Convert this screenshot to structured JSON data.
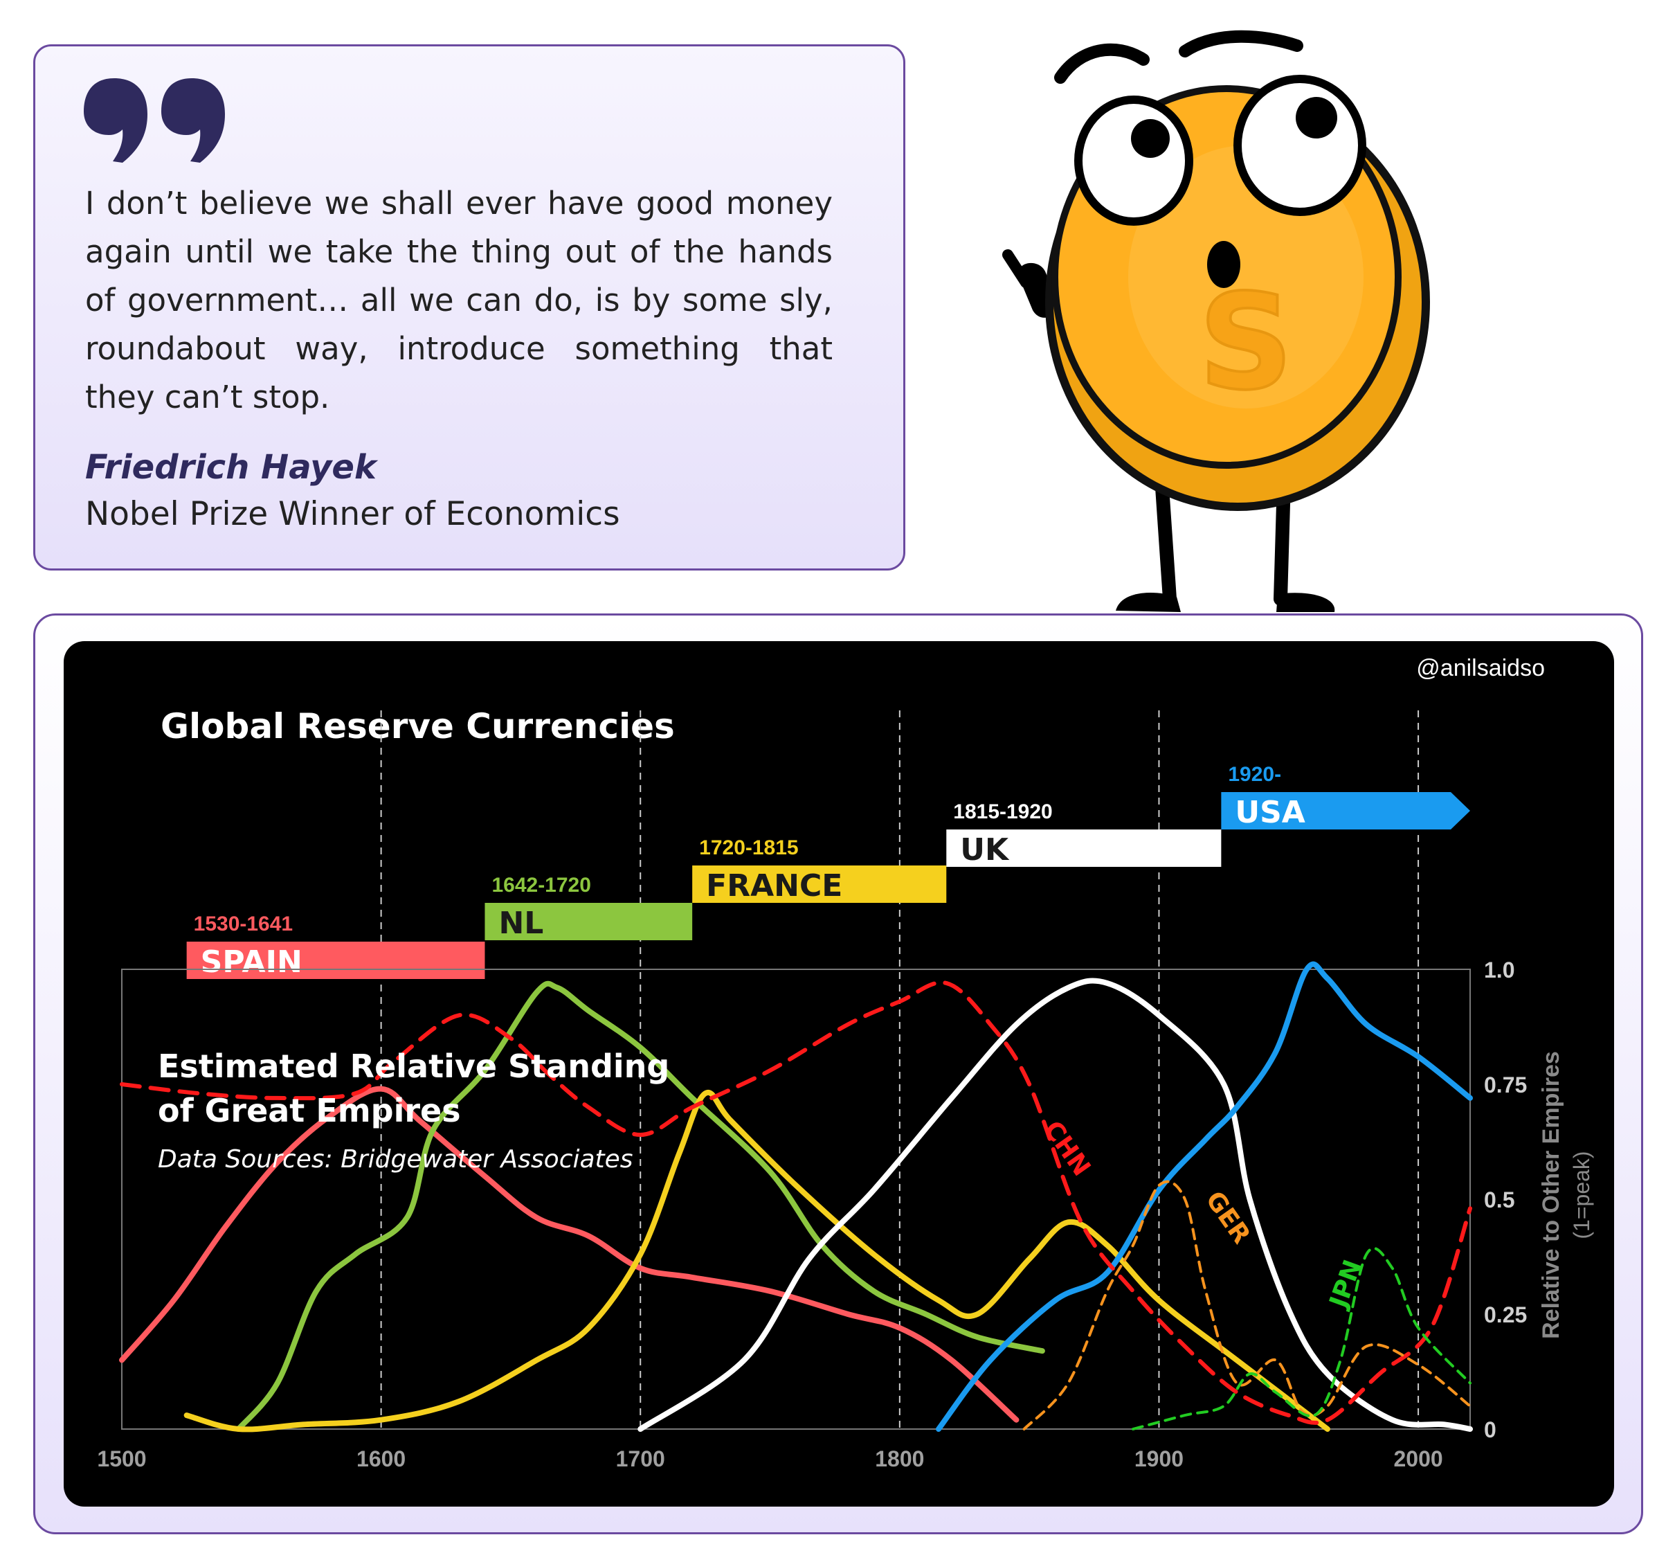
{
  "quote": {
    "text": "I don’t believe we shall ever have good money again until we take the thing out of the hands of government… all we can do, is by some sly, roundabout way, introduce something that they can’t stop.",
    "author": "Friedrich Hayek",
    "role": "Nobel Prize Winner of Economics",
    "icon": "quote-marks-icon"
  },
  "mascot": {
    "icon": "coin-character-icon",
    "emblem": "S"
  },
  "chart_data": {
    "type": "line",
    "title": "Global Reserve Currencies",
    "subtitle": "Estimated Relative Standing of Great Empires",
    "subtitle_lines": [
      "Estimated Relative Standing",
      "of Great Empires"
    ],
    "source": "Data Sources: Bridgewater Associates",
    "watermark": "@anilsaidso",
    "ylabel": "Relative to Other Empires",
    "ylabel_sub": "(1=peak)",
    "xlim": [
      1500,
      2020
    ],
    "ylim": [
      0,
      1
    ],
    "x_ticks": [
      1500,
      1600,
      1700,
      1800,
      1900,
      2000
    ],
    "x_tick_labels": [
      "1500",
      "1600",
      "1700",
      "1800",
      "1900",
      "2000"
    ],
    "y_ticks": [
      0,
      0.25,
      0.5,
      0.75,
      1
    ],
    "y_tick_labels": [
      "0",
      "0.25",
      "0.5",
      "0.75",
      "1.0"
    ],
    "grid_x_dashed": [
      1600,
      1700,
      1800,
      1900,
      2000
    ],
    "legend": "none",
    "reserve_periods": [
      {
        "name": "SPAIN",
        "years": "1530-1641",
        "start": 1525,
        "end": 1640,
        "color": "#ff5a5f"
      },
      {
        "name": "NL",
        "years": "1642-1720",
        "start": 1640,
        "end": 1720,
        "color": "#8cc63f"
      },
      {
        "name": "FRANCE",
        "years": "1720-1815",
        "start": 1720,
        "end": 1818,
        "color": "#f5d01e"
      },
      {
        "name": "UK",
        "years": "1815-1920",
        "start": 1818,
        "end": 1924,
        "color": "#ffffff"
      },
      {
        "name": "USA",
        "years": "1920-",
        "start": 1924,
        "end": 2020,
        "color": "#1a9bf0"
      }
    ],
    "series": [
      {
        "color": "#ff5a5f",
        "dashed": false,
        "x": [
          1500,
          1520,
          1540,
          1560,
          1580,
          1600,
          1615,
          1640,
          1660,
          1680,
          1700,
          1720,
          1750,
          1780,
          1800,
          1820,
          1845
        ],
        "y": [
          0.15,
          0.28,
          0.44,
          0.58,
          0.68,
          0.74,
          0.67,
          0.55,
          0.46,
          0.42,
          0.35,
          0.33,
          0.3,
          0.25,
          0.22,
          0.15,
          0.02
        ]
      },
      {
        "color": "#8cc63f",
        "dashed": false,
        "x": [
          1545,
          1560,
          1575,
          1590,
          1610,
          1620,
          1640,
          1660,
          1668,
          1680,
          1700,
          1720,
          1750,
          1770,
          1790,
          1810,
          1830,
          1855
        ],
        "y": [
          0.0,
          0.1,
          0.3,
          0.38,
          0.46,
          0.65,
          0.78,
          0.95,
          0.96,
          0.91,
          0.83,
          0.72,
          0.56,
          0.4,
          0.3,
          0.25,
          0.2,
          0.17
        ]
      },
      {
        "color": "#f5d01e",
        "dashed": false,
        "x": [
          1525,
          1545,
          1570,
          1600,
          1630,
          1660,
          1680,
          1700,
          1715,
          1725,
          1735,
          1760,
          1790,
          1815,
          1830,
          1850,
          1865,
          1880,
          1900,
          1930,
          1965
        ],
        "y": [
          0.03,
          0.0,
          0.01,
          0.02,
          0.06,
          0.15,
          0.22,
          0.38,
          0.6,
          0.73,
          0.67,
          0.53,
          0.38,
          0.28,
          0.25,
          0.37,
          0.45,
          0.4,
          0.28,
          0.15,
          0.0
        ]
      },
      {
        "color": "#ffffff",
        "dashed": false,
        "x": [
          1700,
          1740,
          1765,
          1790,
          1820,
          1845,
          1865,
          1880,
          1900,
          1925,
          1935,
          1950,
          1965,
          1990,
          2010,
          2020
        ],
        "y": [
          0.0,
          0.15,
          0.37,
          0.52,
          0.72,
          0.88,
          0.96,
          0.97,
          0.9,
          0.75,
          0.5,
          0.26,
          0.12,
          0.02,
          0.01,
          0.0
        ]
      },
      {
        "color": "#1a9bf0",
        "dashed": false,
        "x": [
          1815,
          1835,
          1860,
          1880,
          1900,
          1918,
          1930,
          1945,
          1957,
          1965,
          1980,
          2000,
          2020
        ],
        "y": [
          0.0,
          0.15,
          0.28,
          0.34,
          0.52,
          0.63,
          0.7,
          0.82,
          1.0,
          0.98,
          0.88,
          0.81,
          0.72
        ]
      },
      {
        "color": "#ff1a1a",
        "dashed": true,
        "x": [
          1500,
          1530,
          1560,
          1590,
          1605,
          1630,
          1650,
          1665,
          1680,
          1700,
          1720,
          1750,
          1780,
          1800,
          1818,
          1835,
          1850,
          1870,
          1890,
          1910,
          1930,
          1950,
          1965,
          1985,
          2005,
          2020
        ],
        "y": [
          0.75,
          0.73,
          0.72,
          0.73,
          0.8,
          0.9,
          0.85,
          0.77,
          0.7,
          0.64,
          0.7,
          0.78,
          0.88,
          0.93,
          0.97,
          0.88,
          0.75,
          0.45,
          0.3,
          0.18,
          0.08,
          0.03,
          0.02,
          0.12,
          0.22,
          0.48
        ]
      },
      {
        "color": "#f7931e",
        "dashed": true,
        "x": [
          1848,
          1865,
          1880,
          1890,
          1900,
          1910,
          1918,
          1930,
          1945,
          1955,
          1965,
          1980,
          2000,
          2020
        ],
        "y": [
          0.0,
          0.1,
          0.3,
          0.4,
          0.53,
          0.5,
          0.3,
          0.1,
          0.15,
          0.04,
          0.05,
          0.18,
          0.14,
          0.05
        ]
      },
      {
        "color": "#22cc22",
        "dashed": true,
        "x": [
          1890,
          1910,
          1925,
          1935,
          1945,
          1960,
          1970,
          1980,
          1990,
          2000,
          2020
        ],
        "y": [
          0.0,
          0.03,
          0.05,
          0.12,
          0.08,
          0.03,
          0.15,
          0.38,
          0.35,
          0.22,
          0.1
        ]
      }
    ],
    "annotations": [
      {
        "text": "CHN",
        "x": 1862,
        "y": 0.6,
        "color": "#ff1a1a"
      },
      {
        "text": "GER",
        "x": 1924,
        "y": 0.45,
        "color": "#f7931e"
      },
      {
        "text": "JPN",
        "x": 1975,
        "y": 0.31,
        "color": "#22cc22"
      }
    ]
  }
}
